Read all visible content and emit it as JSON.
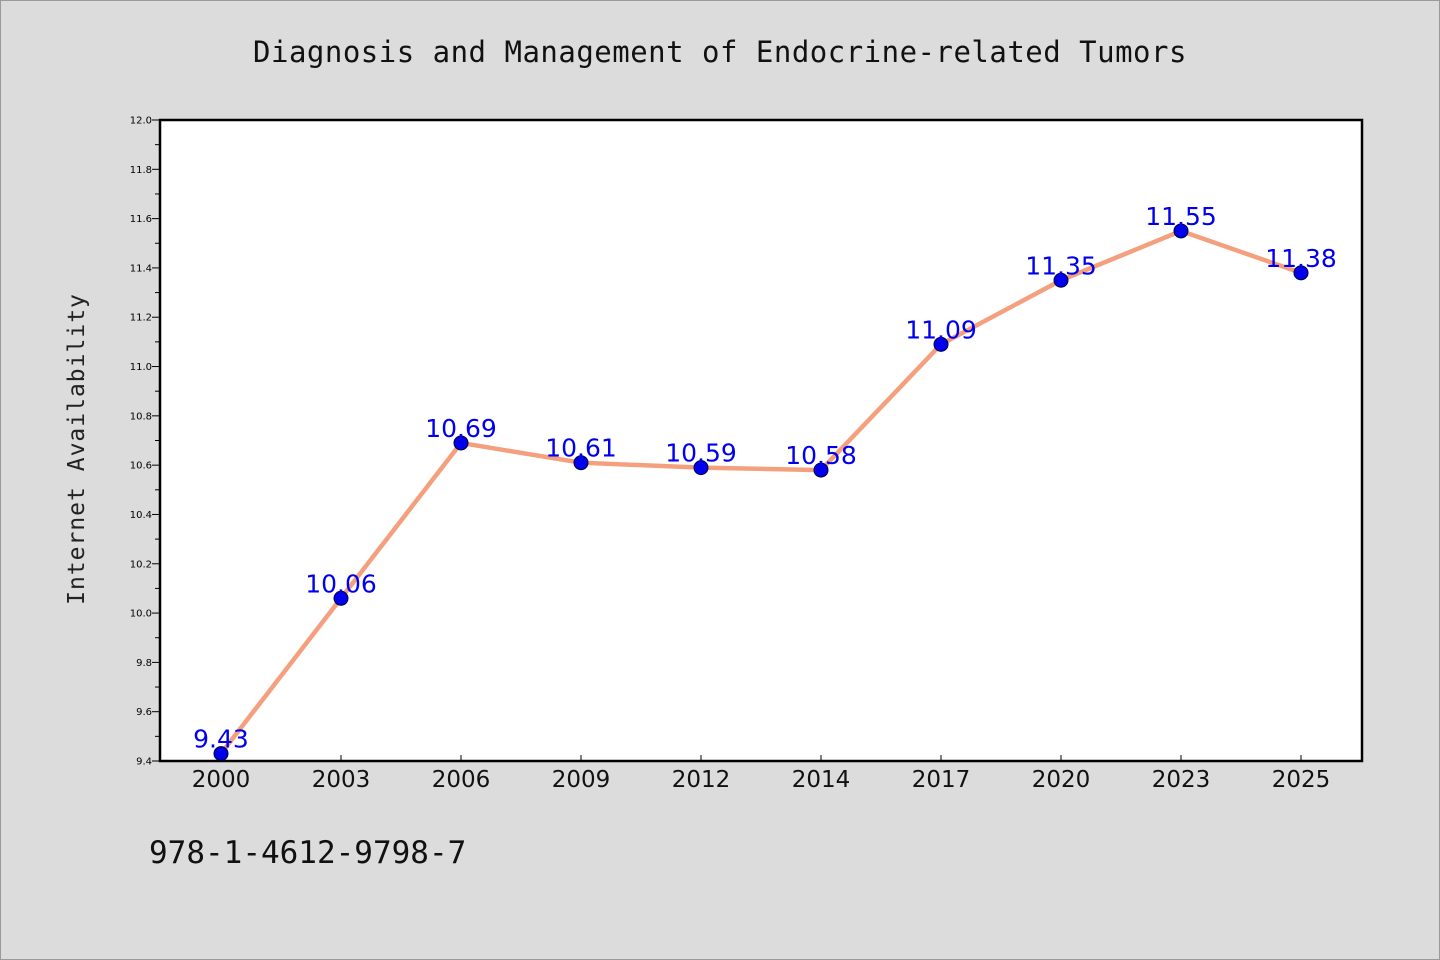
{
  "chart_data": {
    "type": "line",
    "title": "Diagnosis and Management of Endocrine-related Tumors",
    "xlabel": "",
    "ylabel": "Internet Availability",
    "categories": [
      "2000",
      "2003",
      "2006",
      "2009",
      "2012",
      "2014",
      "2017",
      "2020",
      "2023",
      "2025"
    ],
    "series": [
      {
        "values": [
          9.43,
          10.06,
          10.69,
          10.61,
          10.59,
          10.58,
          11.09,
          11.35,
          11.55,
          11.38
        ],
        "data_labels": [
          "9.43",
          "10.06",
          "10.69",
          "10.61",
          "10.59",
          "10.58",
          "11.09",
          "11.35",
          "11.55",
          "11.38"
        ],
        "line_color": "#f4a07e",
        "marker_color": "#0000ee",
        "label_color": "#0000ee"
      }
    ],
    "ylim": [
      9.4,
      12.0
    ],
    "y_ticks": [
      "9.4",
      "9.6",
      "9.8",
      "10.0",
      "10.2",
      "10.4",
      "10.6",
      "10.8",
      "11.0",
      "11.2",
      "11.4",
      "11.6",
      "11.8",
      "12.0"
    ],
    "grid": false,
    "legend": "none"
  },
  "footer": {
    "code": "978-1-4612-9798-7"
  },
  "colors": {
    "background": "#dcdcdc",
    "plot_background": "#ffffff",
    "axis": "#000000"
  }
}
